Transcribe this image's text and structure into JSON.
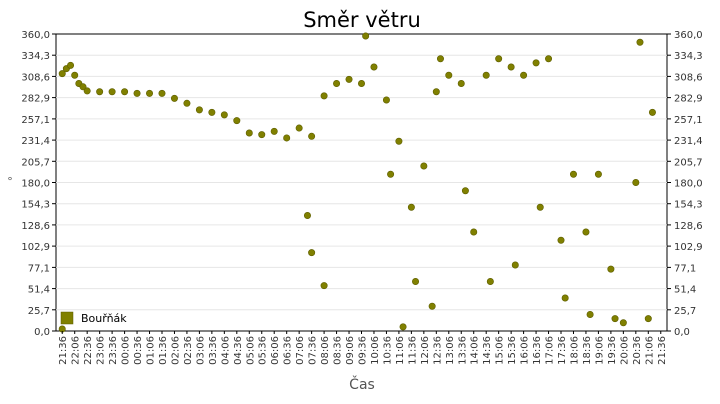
{
  "chart_data": {
    "type": "scatter",
    "title": "Směr větru",
    "xlabel": "Čas",
    "ylabel": "°",
    "ylim": [
      0,
      360
    ],
    "y_ticks": [
      "0,0",
      "25,7",
      "51,4",
      "77,1",
      "102,9",
      "128,6",
      "154,3",
      "180,0",
      "205,7",
      "231,4",
      "257,1",
      "282,9",
      "308,6",
      "334,3",
      "360,0"
    ],
    "y_tick_values": [
      0,
      25.7,
      51.4,
      77.1,
      102.9,
      128.6,
      154.3,
      180.0,
      205.7,
      231.4,
      257.1,
      282.9,
      308.6,
      334.3,
      360.0
    ],
    "x_ticks": [
      "21:36",
      "22:06",
      "22:36",
      "23:06",
      "23:36",
      "00:06",
      "00:36",
      "01:06",
      "01:36",
      "02:06",
      "02:36",
      "03:06",
      "03:36",
      "04:06",
      "04:36",
      "05:06",
      "05:36",
      "06:06",
      "06:36",
      "07:06",
      "07:36",
      "08:06",
      "08:36",
      "09:06",
      "09:36",
      "10:06",
      "10:36",
      "11:06",
      "11:36",
      "12:06",
      "12:36",
      "13:06",
      "13:36",
      "14:06",
      "14:36",
      "15:06",
      "15:36",
      "16:06",
      "16:36",
      "17:06",
      "17:36",
      "18:06",
      "18:36",
      "19:06",
      "19:36",
      "20:06",
      "20:36",
      "21:06",
      "21:36"
    ],
    "grid": true,
    "legend_position": "bottom-left",
    "series": [
      {
        "name": "Bouřňák",
        "color": "#808000",
        "points": [
          [
            "21:36",
            312
          ],
          [
            "21:46",
            318
          ],
          [
            "21:56",
            322
          ],
          [
            "22:06",
            310
          ],
          [
            "22:16",
            300
          ],
          [
            "22:26",
            296
          ],
          [
            "22:36",
            291
          ],
          [
            "23:06",
            290
          ],
          [
            "23:36",
            290
          ],
          [
            "00:06",
            290
          ],
          [
            "00:36",
            288
          ],
          [
            "01:06",
            288
          ],
          [
            "01:36",
            288
          ],
          [
            "02:06",
            282
          ],
          [
            "02:36",
            276
          ],
          [
            "03:06",
            268
          ],
          [
            "03:36",
            265
          ],
          [
            "04:06",
            262
          ],
          [
            "04:36",
            255
          ],
          [
            "05:06",
            240
          ],
          [
            "05:36",
            238
          ],
          [
            "06:06",
            242
          ],
          [
            "06:36",
            234
          ],
          [
            "07:06",
            246
          ],
          [
            "07:36",
            236
          ],
          [
            "07:26",
            140
          ],
          [
            "07:36",
            95
          ],
          [
            "08:06",
            55
          ],
          [
            "08:06",
            285
          ],
          [
            "08:36",
            300
          ],
          [
            "09:06",
            305
          ],
          [
            "09:36",
            300
          ],
          [
            "09:46",
            360
          ],
          [
            "10:06",
            320
          ],
          [
            "10:36",
            280
          ],
          [
            "10:46",
            190
          ],
          [
            "11:06",
            230
          ],
          [
            "11:16",
            5
          ],
          [
            "11:36",
            150
          ],
          [
            "11:46",
            60
          ],
          [
            "12:06",
            200
          ],
          [
            "12:26",
            30
          ],
          [
            "12:36",
            290
          ],
          [
            "12:46",
            330
          ],
          [
            "13:06",
            310
          ],
          [
            "13:36",
            300
          ],
          [
            "13:46",
            170
          ],
          [
            "14:06",
            120
          ],
          [
            "14:36",
            310
          ],
          [
            "14:46",
            60
          ],
          [
            "15:06",
            330
          ],
          [
            "15:36",
            320
          ],
          [
            "15:46",
            80
          ],
          [
            "16:06",
            310
          ],
          [
            "16:36",
            325
          ],
          [
            "16:46",
            150
          ],
          [
            "17:06",
            330
          ],
          [
            "17:36",
            110
          ],
          [
            "17:46",
            40
          ],
          [
            "18:06",
            190
          ],
          [
            "18:36",
            120
          ],
          [
            "18:46",
            20
          ],
          [
            "19:06",
            190
          ],
          [
            "19:36",
            75
          ],
          [
            "19:46",
            15
          ],
          [
            "20:06",
            10
          ],
          [
            "20:36",
            180
          ],
          [
            "20:46",
            350
          ],
          [
            "21:06",
            15
          ],
          [
            "21:16",
            265
          ],
          [
            "21:36",
            2
          ]
        ]
      }
    ]
  }
}
